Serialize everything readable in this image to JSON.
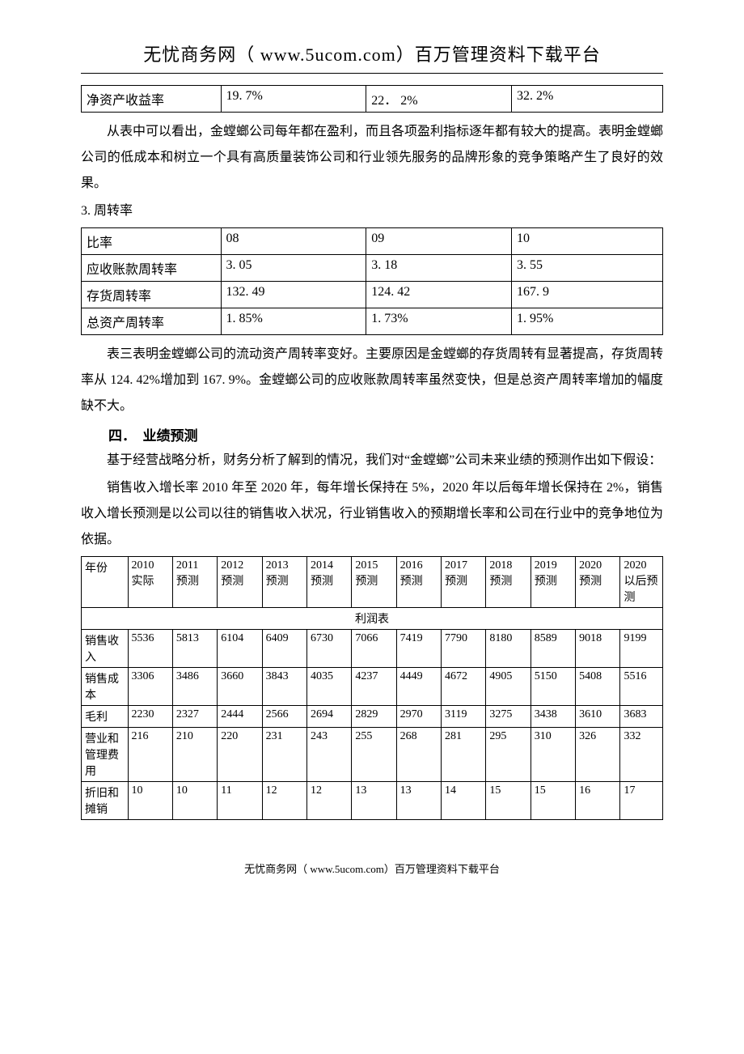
{
  "header": "无忧商务网（ www.5ucom.com）百万管理资料下载平台",
  "footer": "无忧商务网（ www.5ucom.com）百万管理资料下载平台",
  "table1": {
    "rows": [
      [
        "净资产收益率",
        "19. 7%",
        "22． 2%",
        "32. 2%"
      ]
    ],
    "col_widths": [
      "24%",
      "25%",
      "25%",
      "26%"
    ]
  },
  "para1": "从表中可以看出，金螳螂公司每年都在盈利，而且各项盈利指标逐年都有较大的提高。表明金螳螂公司的低成本和树立一个具有高质量装饰公司和行业领先服务的品牌形象的竞争策略产生了良好的效果。",
  "label_turnover": "3. 周转率",
  "table2": {
    "rows": [
      [
        "比率",
        "08",
        "09",
        "10"
      ],
      [
        "应收账款周转率",
        "3. 05",
        "3. 18",
        "3. 55"
      ],
      [
        "存货周转率",
        "132. 49",
        "124. 42",
        "167. 9"
      ],
      [
        "总资产周转率",
        "1. 85%",
        "1. 73%",
        "1. 95%"
      ]
    ],
    "col_widths": [
      "24%",
      "25%",
      "25%",
      "26%"
    ]
  },
  "para2": "表三表明金螳螂公司的流动资产周转率变好。主要原因是金螳螂的存货周转有显著提高，存货周转率从 124. 42%增加到 167. 9%。金螳螂公司的应收账款周转率虽然变快，但是总资产周转率增加的幅度缺不大。",
  "section4_title": "四．　业绩预测",
  "para3": "基于经营战略分析，财务分析了解到的情况，我们对“金螳螂”公司未来业绩的预测作出如下假设：",
  "para4": "销售收入增长率 2010 年至 2020 年，每年增长保持在 5%，2020 年以后每年增长保持在 2%，销售收入增长预测是以公司以往的销售收入状况，行业销售收入的预期增长率和公司在行业中的竞争地位为依据。",
  "table3": {
    "header_row1": [
      "年份",
      "2010",
      "2011",
      "2012",
      "2013",
      "2014",
      "2015",
      "2016",
      "2017",
      "2018",
      "2019",
      "2020",
      "2020"
    ],
    "header_row2": [
      "",
      "实际",
      "预测",
      "预测",
      "预测",
      "预测",
      "预测",
      "预测",
      "预测",
      "预测",
      "预测",
      "预测",
      "以后预测"
    ],
    "sub_header": "利润表",
    "rows": [
      [
        "销售收入",
        "5536",
        "5813",
        "6104",
        "6409",
        "6730",
        "7066",
        "7419",
        "7790",
        "8180",
        "8589",
        "9018",
        "9199"
      ],
      [
        "销售成本",
        "3306",
        "3486",
        "3660",
        "3843",
        "4035",
        "4237",
        "4449",
        "4672",
        "4905",
        "5150",
        "5408",
        "5516"
      ],
      [
        "毛利",
        "2230",
        "2327",
        "2444",
        "2566",
        "2694",
        "2829",
        "2970",
        "3119",
        "3275",
        "3438",
        "3610",
        "3683"
      ],
      [
        "营业和管理费用",
        "216",
        "210",
        "220",
        "231",
        "243",
        "255",
        "268",
        "281",
        "295",
        "310",
        "326",
        "332"
      ],
      [
        "折旧和摊销",
        "10",
        "10",
        "11",
        "12",
        "12",
        "13",
        "13",
        "14",
        "15",
        "15",
        "16",
        "17"
      ]
    ],
    "col_widths": [
      "8%",
      "7.7%",
      "7.7%",
      "7.7%",
      "7.7%",
      "7.7%",
      "7.7%",
      "7.7%",
      "7.7%",
      "7.7%",
      "7.7%",
      "7.7%",
      "7.6%"
    ]
  }
}
